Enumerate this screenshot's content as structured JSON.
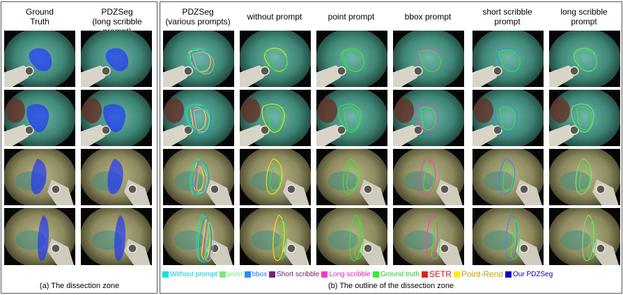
{
  "panel_a": {
    "columns": [
      "Ground\nTruth",
      "PDZSeg\n(long scribble prompt)"
    ],
    "caption": "(a) The dissection zone"
  },
  "panel_b": {
    "columns": [
      "PDZSeg\n(various prompts)",
      "without prompt",
      "point prompt",
      "bbox prompt",
      "short scribble\nprompt",
      "long scribble\nprompt"
    ],
    "caption": "(b) The outline of the dissection zone",
    "legend": [
      {
        "label": "Without prompt",
        "color": "#00e5e5",
        "text_color": "#00c8d8",
        "size": "10"
      },
      {
        "label": "point",
        "color": "#7de87d",
        "text_color": "#7de87d",
        "size": "10"
      },
      {
        "label": "bbox",
        "color": "#1e90ff",
        "text_color": "#1e7ad8",
        "size": "10"
      },
      {
        "label": "Short scribble",
        "color": "#7b1e7b",
        "text_color": "#6a1a6a",
        "size": "10"
      },
      {
        "label": "Long scribble",
        "color": "#ff33cc",
        "text_color": "#e020c0",
        "size": "10"
      },
      {
        "label": "Ground truth",
        "color": "#33ee33",
        "text_color": "#22cc22",
        "size": "10"
      },
      {
        "label": "SETR",
        "color": "#e02020",
        "text_color": "#d01010",
        "size": "12"
      },
      {
        "label": "Point-Rend",
        "color": "#ffee00",
        "text_color": "#c8a000",
        "size": "12"
      },
      {
        "label": "Our PDZSeg",
        "color": "#0000cc",
        "text_color": "#0000aa",
        "size": "10"
      }
    ]
  }
}
